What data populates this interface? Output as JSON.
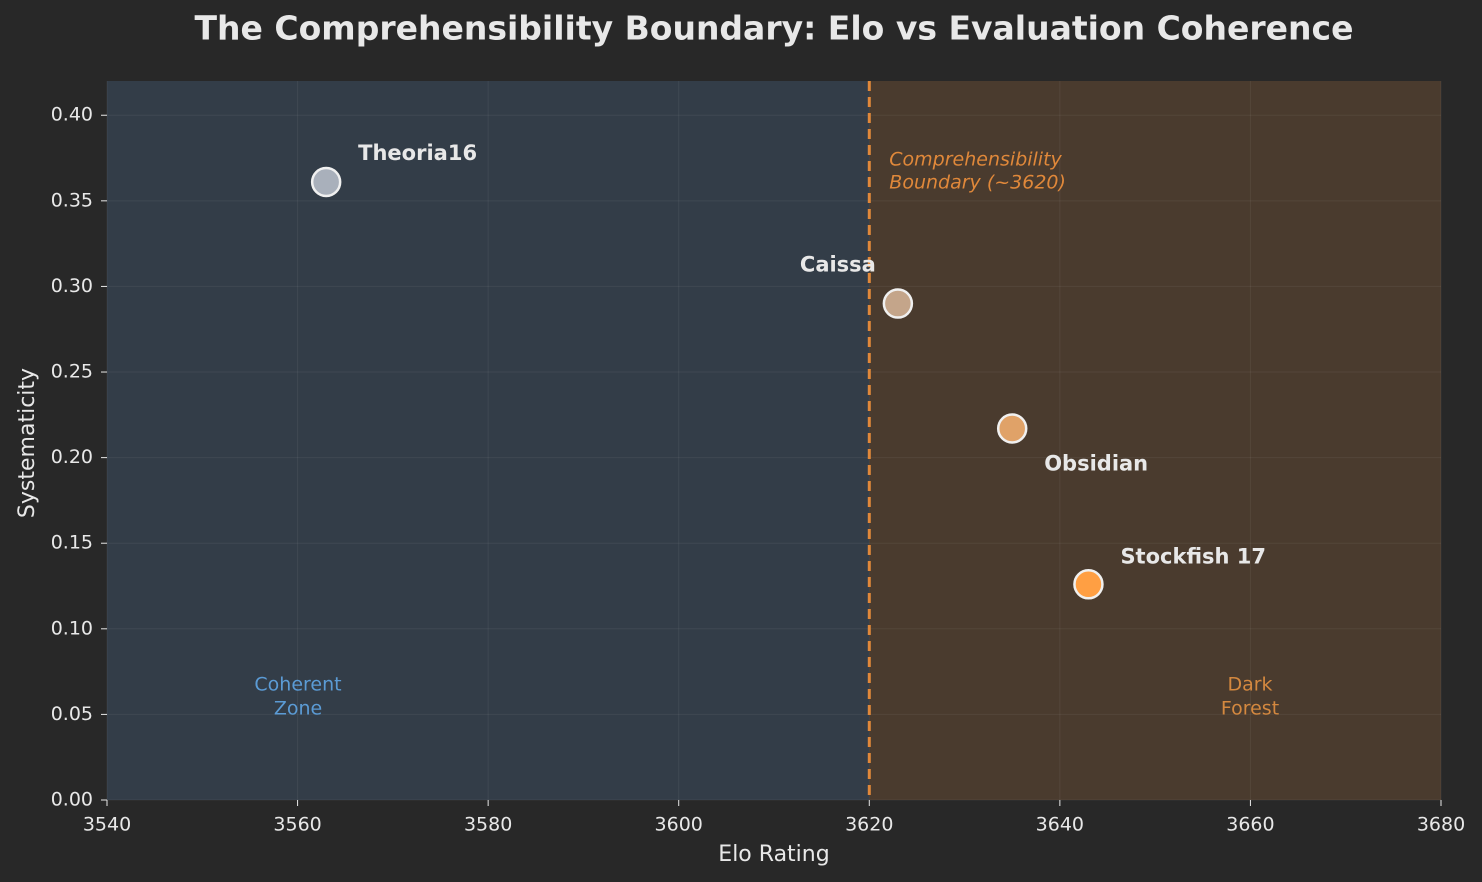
{
  "chart_data": {
    "type": "scatter",
    "title": "The Comprehensibility Boundary: Elo vs Evaluation Coherence",
    "x_label": "Elo Rating",
    "y_label": "Systematicity",
    "xlim": [
      3540,
      3680
    ],
    "ylim": [
      0,
      0.42
    ],
    "xticks": [
      3540,
      3560,
      3580,
      3600,
      3620,
      3640,
      3660,
      3680
    ],
    "yticks": [
      {
        "value": 0,
        "label": "0.00"
      },
      {
        "value": 0.05,
        "label": "0.05"
      },
      {
        "value": 0.1,
        "label": "0.10"
      },
      {
        "value": 0.15,
        "label": "0.15"
      },
      {
        "value": 0.2,
        "label": "0.20"
      },
      {
        "value": 0.25,
        "label": "0.25"
      },
      {
        "value": 0.3,
        "label": "0.30"
      },
      {
        "value": 0.35,
        "label": "0.35"
      },
      {
        "value": 0.4,
        "label": "0.40"
      }
    ],
    "grid": true,
    "series": [
      {
        "name": "Theoria16",
        "color": "#a9b0bb",
        "x": [
          3563
        ],
        "values": [
          0.361
        ]
      },
      {
        "name": "Caissa",
        "color": "#c4a58a",
        "x": [
          3623
        ],
        "values": [
          0.29
        ]
      },
      {
        "name": "Obsidian",
        "color": "#e0a268",
        "x": [
          3635
        ],
        "values": [
          0.217
        ]
      },
      {
        "name": "Stockfish 17",
        "color": "#ff9f43",
        "x": [
          3643
        ],
        "values": [
          0.126
        ]
      }
    ],
    "boundary": {
      "x": 3620,
      "color": "#e0883a",
      "label": [
        "Comprehensibility",
        "Boundary (~3620)"
      ]
    },
    "zones": [
      {
        "xlim": [
          3540,
          3620
        ],
        "color": "#333d48",
        "label_color": "#5b9bd5",
        "label": [
          "Coherent",
          "Zone"
        ]
      },
      {
        "xlim": [
          3620,
          3680
        ],
        "color": "#4a3b2e",
        "label_color": "#d4883f",
        "label": [
          "Dark",
          "Forest"
        ]
      }
    ]
  }
}
